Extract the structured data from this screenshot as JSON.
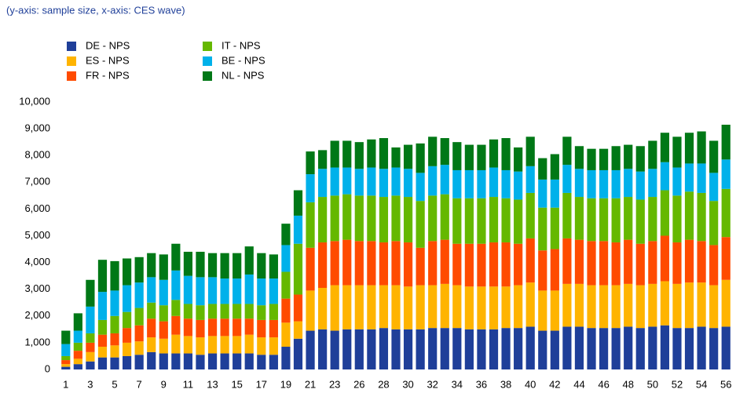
{
  "chart_data": {
    "type": "stacked-bar",
    "subtitle": "(y-axis: sample size, x-axis: CES wave)",
    "categories": [
      "1",
      null,
      "3",
      null,
      "5",
      null,
      "7",
      null,
      "9",
      null,
      "11",
      null,
      "13",
      null,
      "15",
      null,
      "17",
      null,
      "19",
      null,
      "21",
      null,
      "23",
      null,
      "26",
      null,
      "28",
      null,
      "30",
      null,
      "32",
      null,
      "34",
      null,
      "36",
      null,
      "38",
      null,
      "40",
      null,
      "42",
      null,
      "44",
      null,
      "46",
      null,
      "48",
      null,
      "50",
      null,
      "52",
      null,
      "54",
      null,
      "56"
    ],
    "series": [
      {
        "name": "DE - NPS",
        "color": "#1f3f99",
        "values": [
          100,
          200,
          300,
          450,
          450,
          500,
          550,
          650,
          600,
          600,
          600,
          550,
          600,
          600,
          600,
          600,
          550,
          550,
          850,
          1150,
          1450,
          1500,
          1450,
          1500,
          1500,
          1500,
          1550,
          1500,
          1500,
          1500,
          1550,
          1550,
          1550,
          1500,
          1500,
          1500,
          1550,
          1550,
          1600,
          1450,
          1450,
          1600,
          1600,
          1550,
          1550,
          1550,
          1600,
          1550,
          1600,
          1650,
          1550,
          1550,
          1600,
          1550,
          1600
        ]
      },
      {
        "name": "ES - NPS",
        "color": "#ffb400",
        "values": [
          100,
          200,
          350,
          400,
          450,
          500,
          500,
          550,
          550,
          700,
          650,
          650,
          650,
          650,
          650,
          700,
          650,
          650,
          900,
          650,
          1500,
          1550,
          1700,
          1650,
          1650,
          1650,
          1600,
          1650,
          1600,
          1650,
          1600,
          1650,
          1600,
          1600,
          1600,
          1600,
          1550,
          1600,
          1650,
          1500,
          1500,
          1600,
          1600,
          1600,
          1600,
          1600,
          1600,
          1600,
          1600,
          1650,
          1650,
          1700,
          1650,
          1600,
          1750
        ]
      },
      {
        "name": "FR - NPS",
        "color": "#ff4b00",
        "values": [
          150,
          300,
          350,
          450,
          450,
          550,
          600,
          700,
          650,
          700,
          650,
          650,
          650,
          650,
          650,
          600,
          650,
          650,
          900,
          1000,
          1600,
          1700,
          1650,
          1700,
          1650,
          1650,
          1600,
          1650,
          1650,
          1400,
          1650,
          1650,
          1550,
          1600,
          1600,
          1650,
          1650,
          1550,
          1650,
          1500,
          1550,
          1700,
          1650,
          1650,
          1650,
          1600,
          1650,
          1550,
          1600,
          1700,
          1550,
          1600,
          1550,
          1500,
          1600
        ]
      },
      {
        "name": "IT - NPS",
        "color": "#65b800",
        "values": [
          150,
          300,
          350,
          550,
          650,
          600,
          650,
          600,
          600,
          600,
          550,
          550,
          550,
          550,
          550,
          550,
          550,
          600,
          1000,
          1900,
          1700,
          1700,
          1700,
          1700,
          1700,
          1700,
          1700,
          1700,
          1700,
          1750,
          1700,
          1700,
          1700,
          1700,
          1700,
          1700,
          1650,
          1650,
          1700,
          1600,
          1550,
          1700,
          1600,
          1600,
          1600,
          1650,
          1600,
          1650,
          1650,
          1700,
          1750,
          1800,
          1800,
          1650,
          1800
        ]
      },
      {
        "name": "BE - NPS",
        "color": "#00b1ea",
        "values": [
          450,
          450,
          1000,
          1050,
          950,
          1000,
          950,
          950,
          950,
          1100,
          1050,
          1050,
          1000,
          950,
          950,
          1100,
          1000,
          950,
          1000,
          1050,
          1050,
          1050,
          1050,
          1000,
          1000,
          1050,
          1050,
          1050,
          1050,
          1050,
          1100,
          1100,
          1050,
          1050,
          1050,
          1100,
          1050,
          1050,
          1000,
          1050,
          1050,
          1050,
          1050,
          1050,
          1050,
          1050,
          1050,
          1050,
          1050,
          1050,
          1050,
          1050,
          1100,
          1050,
          1100
        ]
      },
      {
        "name": "NL - NPS",
        "color": "#007816",
        "values": [
          500,
          650,
          1000,
          1200,
          1100,
          1000,
          950,
          900,
          950,
          1000,
          900,
          950,
          900,
          950,
          950,
          1050,
          950,
          900,
          800,
          950,
          850,
          700,
          1000,
          1000,
          1000,
          1050,
          1150,
          750,
          900,
          1100,
          1100,
          1000,
          1050,
          950,
          950,
          1050,
          1200,
          900,
          1100,
          800,
          950,
          1050,
          850,
          800,
          800,
          900,
          900,
          950,
          1050,
          1100,
          1150,
          1150,
          1200,
          1200,
          1300
        ]
      }
    ],
    "ylim": [
      0,
      10000
    ],
    "yticks": [
      0,
      {
        "value": 1000,
        "label": "1,000"
      },
      {
        "value": 2000,
        "label": "2,000"
      },
      {
        "value": 3000,
        "label": "3,000"
      },
      {
        "value": 4000,
        "label": "4,000"
      },
      {
        "value": 5000,
        "label": "5,000"
      },
      {
        "value": 6000,
        "label": "6,000"
      },
      {
        "value": 7000,
        "label": "7,000"
      },
      {
        "value": 8000,
        "label": "8,000"
      },
      {
        "value": 9000,
        "label": "9,000"
      },
      {
        "value": 10000,
        "label": "10,000"
      }
    ],
    "grid": false
  }
}
